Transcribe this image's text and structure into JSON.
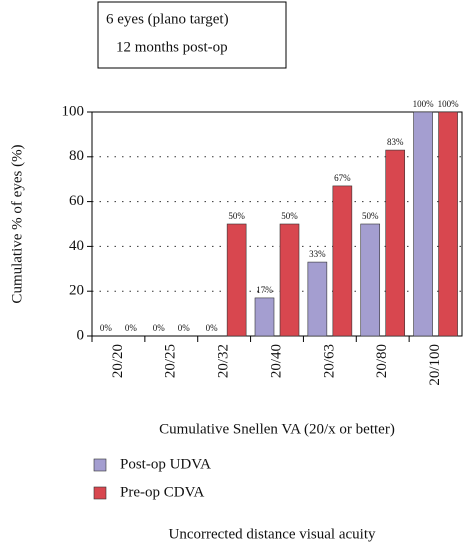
{
  "chart_data": {
    "type": "bar",
    "annotations": [
      "6 eyes (plano target)",
      "12 months post-op"
    ],
    "ylabel": "Cumulative % of eyes (%)",
    "xlabel": "Cumulative Snellen VA (20/x or better)",
    "caption": "Uncorrected distance visual acuity",
    "categories": [
      "20/20",
      "20/25",
      "20/32",
      "20/40",
      "20/63",
      "20/80",
      "20/100"
    ],
    "series": [
      {
        "name": "Post-op UDVA",
        "color": "#a49ed0",
        "values": [
          0,
          0,
          0,
          17,
          33,
          50,
          100
        ],
        "value_labels": [
          "0%",
          "0%",
          "0%",
          "17%",
          "33%",
          "50%",
          "100%"
        ]
      },
      {
        "name": "Pre-op CDVA",
        "color": "#d8474f",
        "values": [
          0,
          0,
          50,
          50,
          67,
          83,
          100
        ],
        "value_labels": [
          "0%",
          "0%",
          "50%",
          "50%",
          "67%",
          "83%",
          "100%"
        ]
      }
    ],
    "ylim": [
      0,
      100
    ],
    "yticks": [
      0,
      20,
      40,
      60,
      80,
      100
    ],
    "grid": true
  }
}
